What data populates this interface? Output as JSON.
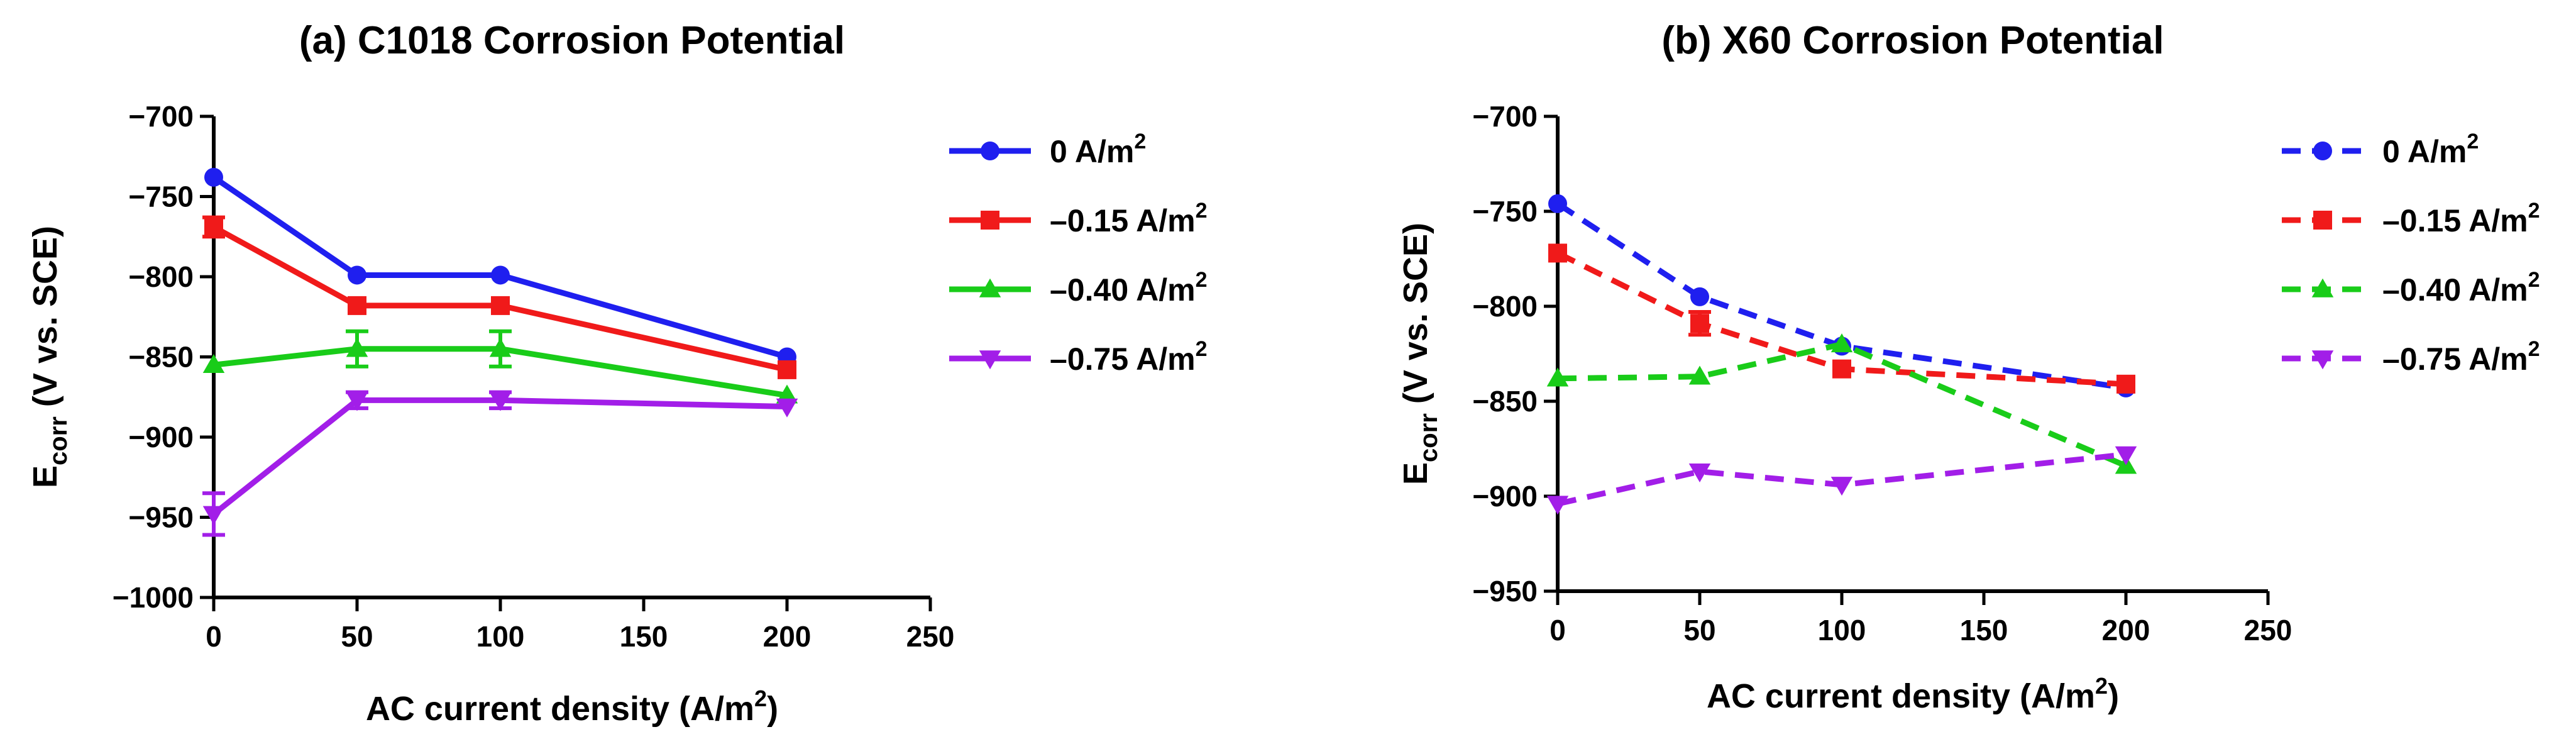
{
  "chart_data": [
    {
      "type": "line",
      "title": "(a) C1018 Corrosion Potential",
      "xlabel": {
        "main": "AC current density (A/m",
        "sup": "2",
        "end": ")"
      },
      "ylabel": {
        "base": "E",
        "sub": "corr",
        "rest": " (V vs. SCE)"
      },
      "xlim": [
        0,
        250
      ],
      "ylim": [
        -1000,
        -700
      ],
      "xticks": [
        "0",
        "50",
        "100",
        "150",
        "200",
        "250"
      ],
      "yticks": [
        "−700",
        "−750",
        "−800",
        "−850",
        "−900",
        "−950",
        "−1000"
      ],
      "line_style": "solid",
      "series": [
        {
          "name": "0 A/m",
          "sup": "2",
          "color": "#1f1fef",
          "marker": "circle",
          "x": [
            0,
            50,
            100,
            200
          ],
          "y": [
            -738,
            -799,
            -799,
            -850
          ],
          "err": [
            0,
            0,
            0,
            0
          ]
        },
        {
          "name": "–0.15 A/m",
          "sup": "2",
          "color": "#f01a1a",
          "marker": "square",
          "x": [
            0,
            50,
            100,
            200
          ],
          "y": [
            -769,
            -818,
            -818,
            -858
          ],
          "err": [
            6,
            0,
            0,
            0
          ]
        },
        {
          "name": "–0.40 A/m",
          "sup": "2",
          "color": "#19cc19",
          "marker": "triangle-up",
          "x": [
            0,
            50,
            100,
            200
          ],
          "y": [
            -855,
            -845,
            -845,
            -874
          ],
          "err": [
            0,
            11,
            11,
            0
          ]
        },
        {
          "name": "–0.75 A/m",
          "sup": "2",
          "color": "#a21ee8",
          "marker": "triangle-down",
          "x": [
            0,
            50,
            100,
            200
          ],
          "y": [
            -948,
            -877,
            -877,
            -881
          ],
          "err": [
            13,
            5,
            5,
            0
          ]
        }
      ]
    },
    {
      "type": "line",
      "title": "(b) X60 Corrosion Potential",
      "xlabel": {
        "main": "AC current density (A/m",
        "sup": "2",
        "end": ")"
      },
      "ylabel": {
        "base": "E",
        "sub": "corr",
        "rest": " (V vs. SCE)"
      },
      "xlim": [
        0,
        250
      ],
      "ylim": [
        -950,
        -700
      ],
      "xticks": [
        "0",
        "50",
        "100",
        "150",
        "200",
        "250"
      ],
      "yticks": [
        "−700",
        "−750",
        "−800",
        "−850",
        "−900",
        "−950"
      ],
      "line_style": "dashed",
      "series": [
        {
          "name": "0 A/m",
          "sup": "2",
          "color": "#1f1fef",
          "marker": "circle",
          "x": [
            0,
            50,
            100,
            200
          ],
          "y": [
            -746,
            -795,
            -821,
            -843
          ],
          "err": [
            0,
            0,
            0,
            0
          ]
        },
        {
          "name": "–0.15 A/m",
          "sup": "2",
          "color": "#f01a1a",
          "marker": "square",
          "x": [
            0,
            50,
            100,
            200
          ],
          "y": [
            -772,
            -809,
            -833,
            -841
          ],
          "err": [
            0,
            6,
            0,
            0
          ]
        },
        {
          "name": "–0.40 A/m",
          "sup": "2",
          "color": "#19cc19",
          "marker": "triangle-up",
          "x": [
            0,
            50,
            100,
            200
          ],
          "y": [
            -838,
            -837,
            -820,
            -884
          ],
          "err": [
            0,
            0,
            0,
            0
          ]
        },
        {
          "name": "–0.75 A/m",
          "sup": "2",
          "color": "#a21ee8",
          "marker": "triangle-down",
          "x": [
            0,
            50,
            100,
            200
          ],
          "y": [
            -904,
            -887,
            -894,
            -878
          ],
          "err": [
            0,
            0,
            0,
            0
          ]
        }
      ]
    }
  ]
}
